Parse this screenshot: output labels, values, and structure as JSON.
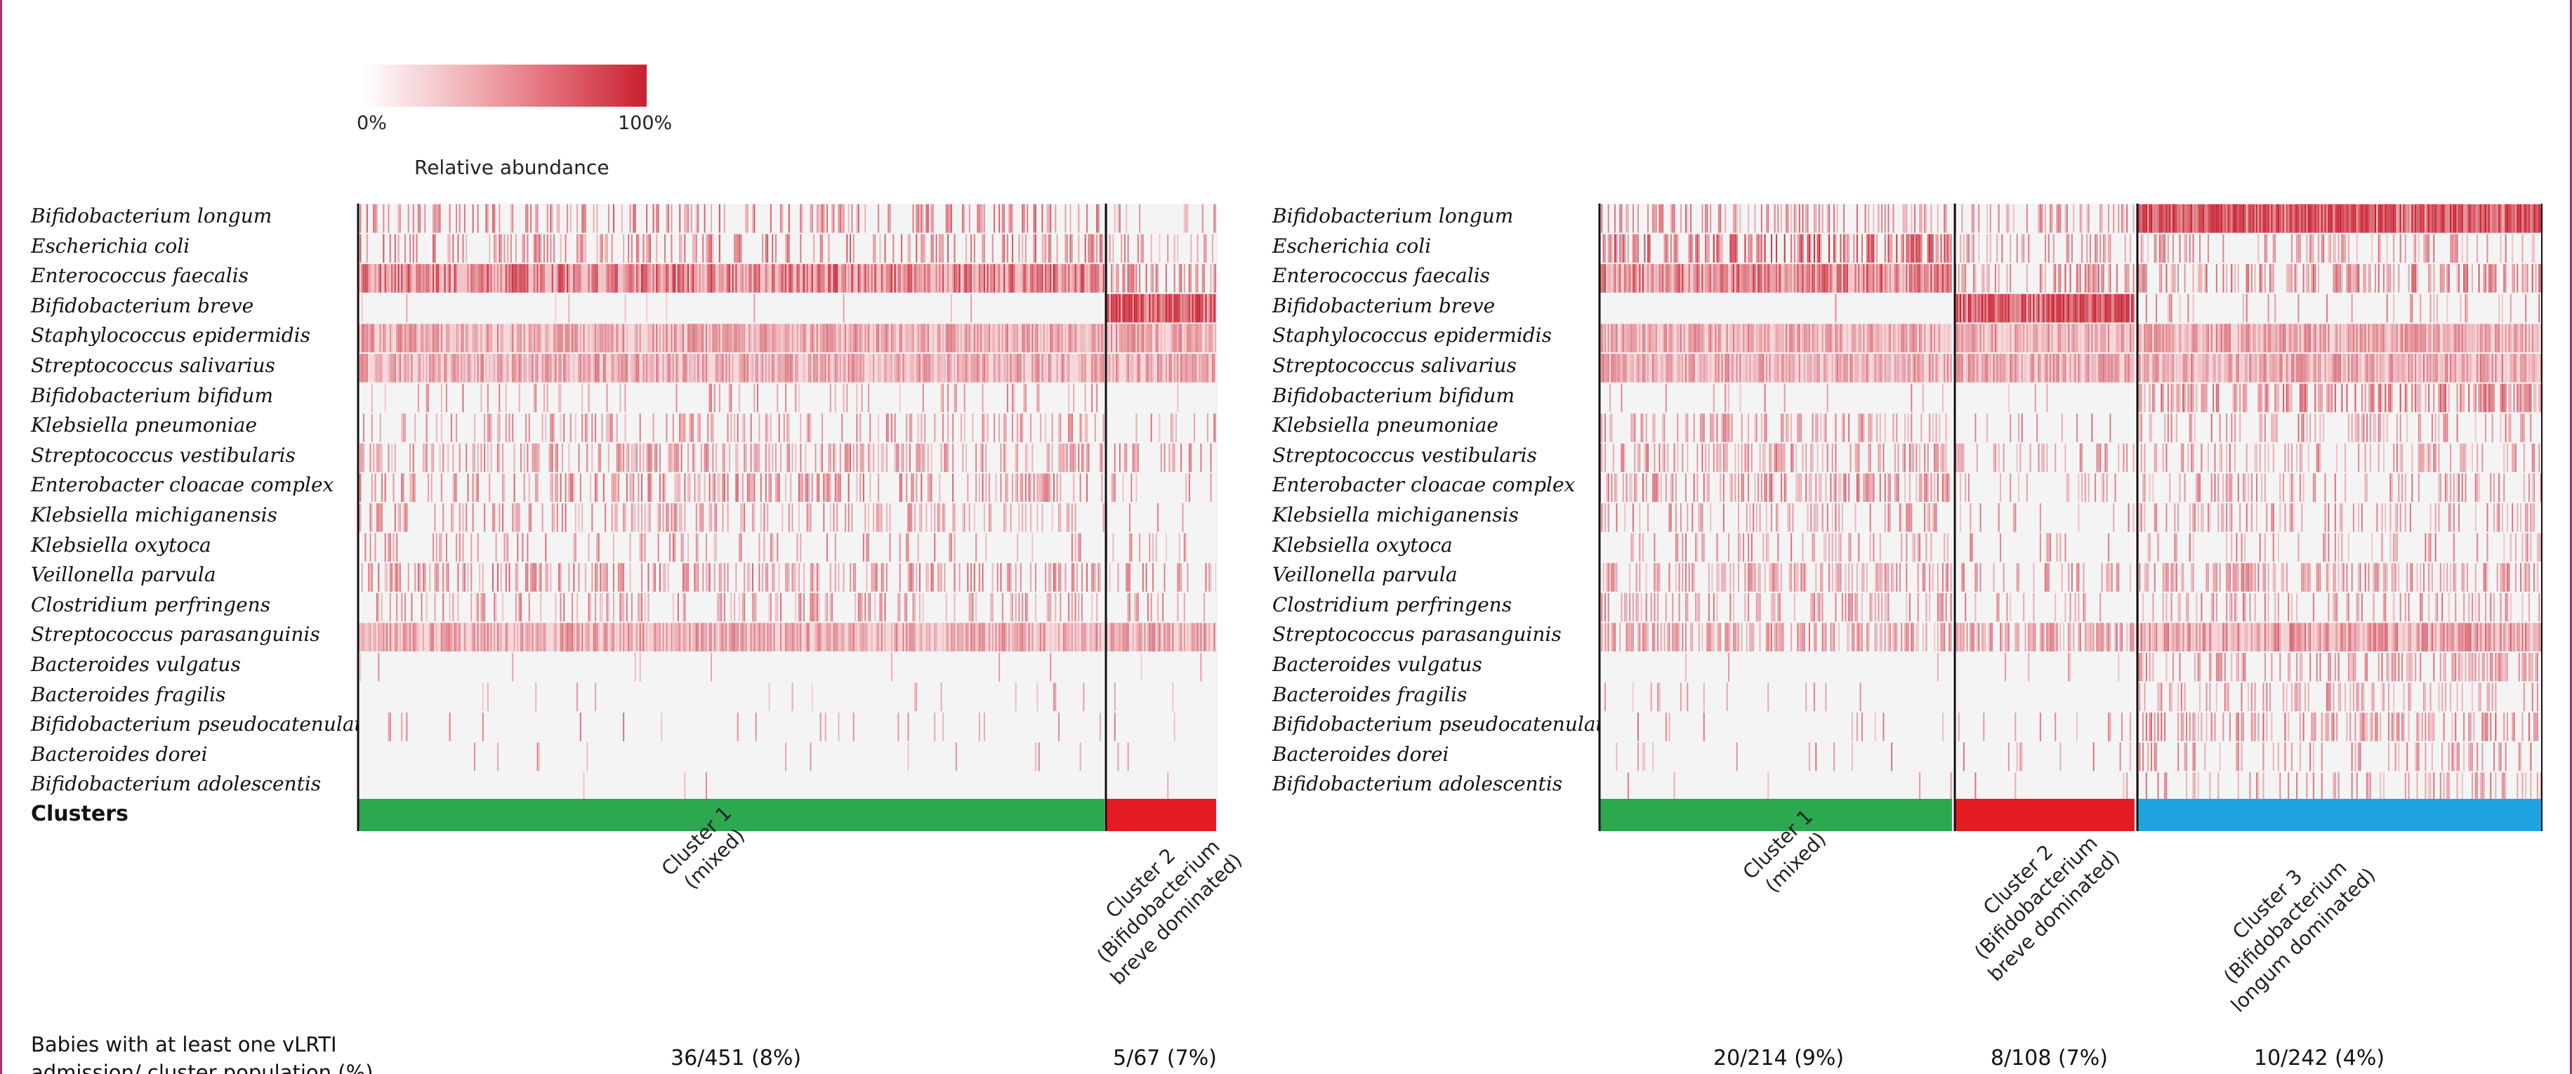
{
  "chart_data": [
    {
      "type": "heatmap",
      "panel": "left",
      "legend": {
        "title": "Relative abundance",
        "min_label": "0%",
        "max_label": "100%",
        "low_color": "#ffffff",
        "high_color": "#c8202f"
      },
      "taxa": [
        "Bifidobacterium longum",
        "Escherichia coli",
        "Enterococcus faecalis",
        "Bifidobacterium breve",
        "Staphylococcus epidermidis",
        "Streptococcus salivarius",
        "Bifidobacterium bifidum",
        "Klebsiella pneumoniae",
        "Streptococcus vestibularis",
        "Enterobacter cloacae complex",
        "Klebsiella michiganensis",
        "Klebsiella oxytoca",
        "Veillonella parvula",
        "Clostridium perfringens",
        "Streptococcus parasanguinis",
        "Bacteroides vulgatus",
        "Bacteroides fragilis",
        "Bifidobacterium pseudocatenulatum",
        "Bacteroides dorei",
        "Bifidobacterium adolescentis"
      ],
      "clusters_row_label": "Clusters",
      "clusters": [
        {
          "name": "Cluster 1 (mixed)",
          "lines": [
            "Cluster 1",
            "(mixed)"
          ],
          "color": "#2ca84e",
          "n": 451,
          "row_density": [
            0.35,
            0.32,
            0.7,
            0.02,
            0.75,
            0.7,
            0.12,
            0.3,
            0.4,
            0.35,
            0.3,
            0.2,
            0.45,
            0.28,
            0.7,
            0.02,
            0.02,
            0.04,
            0.02,
            0.01
          ],
          "row_intensity": [
            0.6,
            0.6,
            0.75,
            0.4,
            0.5,
            0.5,
            0.5,
            0.5,
            0.5,
            0.55,
            0.5,
            0.5,
            0.55,
            0.5,
            0.5,
            0.4,
            0.4,
            0.5,
            0.5,
            0.5
          ],
          "babies_with_vlrti": "36/451 (8%)"
        },
        {
          "name": "Cluster 2 (Bifidobacterium breve dominated)",
          "lines": [
            "Cluster 2",
            "(Bifidobacterium",
            "breve dominated)"
          ],
          "color": "#e31b23",
          "n": 67,
          "row_density": [
            0.25,
            0.25,
            0.45,
            0.98,
            0.8,
            0.7,
            0.05,
            0.15,
            0.2,
            0.15,
            0.15,
            0.1,
            0.25,
            0.2,
            0.75,
            0.02,
            0.02,
            0.04,
            0.02,
            0.02
          ],
          "row_intensity": [
            0.5,
            0.5,
            0.6,
            0.95,
            0.5,
            0.5,
            0.4,
            0.5,
            0.5,
            0.5,
            0.5,
            0.5,
            0.5,
            0.5,
            0.5,
            0.4,
            0.4,
            0.5,
            0.5,
            0.5
          ],
          "babies_with_vlrti": "5/67 (7%)"
        }
      ]
    },
    {
      "type": "heatmap",
      "panel": "right",
      "taxa": [
        "Bifidobacterium longum",
        "Escherichia coli",
        "Enterococcus faecalis",
        "Bifidobacterium breve",
        "Staphylococcus epidermidis",
        "Streptococcus salivarius",
        "Bifidobacterium bifidum",
        "Klebsiella pneumoniae",
        "Streptococcus vestibularis",
        "Enterobacter cloacae complex",
        "Klebsiella michiganensis",
        "Klebsiella oxytoca",
        "Veillonella parvula",
        "Clostridium perfringens",
        "Streptococcus parasanguinis",
        "Bacteroides vulgatus",
        "Bacteroides fragilis",
        "Bifidobacterium pseudocatenulatum",
        "Bacteroides dorei",
        "Bifidobacterium adolescentis"
      ],
      "clusters": [
        {
          "name": "Cluster 1 (mixed)",
          "lines": [
            "Cluster 1",
            "(mixed)"
          ],
          "color": "#2ca84e",
          "n": 214,
          "row_density": [
            0.35,
            0.55,
            0.75,
            0.02,
            0.75,
            0.7,
            0.08,
            0.3,
            0.4,
            0.4,
            0.3,
            0.2,
            0.45,
            0.3,
            0.6,
            0.03,
            0.05,
            0.05,
            0.03,
            0.02
          ],
          "row_intensity": [
            0.55,
            0.75,
            0.7,
            0.4,
            0.5,
            0.5,
            0.5,
            0.5,
            0.5,
            0.55,
            0.5,
            0.5,
            0.5,
            0.5,
            0.5,
            0.45,
            0.45,
            0.5,
            0.5,
            0.5
          ],
          "babies_with_vlrti": "20/214 (9%)"
        },
        {
          "name": "Cluster 2 (Bifidobacterium breve dominated)",
          "lines": [
            "Cluster 2",
            "(Bifidobacterium",
            "breve dominated)"
          ],
          "color": "#e31b23",
          "n": 108,
          "row_density": [
            0.3,
            0.3,
            0.45,
            0.95,
            0.75,
            0.7,
            0.06,
            0.12,
            0.2,
            0.15,
            0.12,
            0.1,
            0.25,
            0.15,
            0.6,
            0.03,
            0.04,
            0.05,
            0.03,
            0.02
          ],
          "row_intensity": [
            0.5,
            0.5,
            0.6,
            0.95,
            0.5,
            0.5,
            0.45,
            0.5,
            0.5,
            0.5,
            0.5,
            0.5,
            0.5,
            0.5,
            0.5,
            0.45,
            0.45,
            0.5,
            0.5,
            0.5
          ],
          "babies_with_vlrti": "8/108 (7%)"
        },
        {
          "name": "Cluster 3 (Bifidobacterium longum dominated)",
          "lines": [
            "Cluster 3",
            "(Bifidobacterium",
            "longum dominated)"
          ],
          "color": "#1ea5e0",
          "n": 242,
          "row_density": [
            0.97,
            0.3,
            0.5,
            0.15,
            0.8,
            0.75,
            0.55,
            0.25,
            0.35,
            0.3,
            0.3,
            0.2,
            0.45,
            0.25,
            0.7,
            0.35,
            0.3,
            0.4,
            0.3,
            0.25
          ],
          "row_intensity": [
            0.95,
            0.5,
            0.6,
            0.5,
            0.5,
            0.5,
            0.6,
            0.5,
            0.5,
            0.5,
            0.5,
            0.5,
            0.5,
            0.5,
            0.55,
            0.5,
            0.5,
            0.55,
            0.5,
            0.5
          ],
          "babies_with_vlrti": "10/242 (4%)"
        }
      ]
    }
  ],
  "stats_row_label": "Babies with at least one vLRTI admission/ cluster population (%)"
}
